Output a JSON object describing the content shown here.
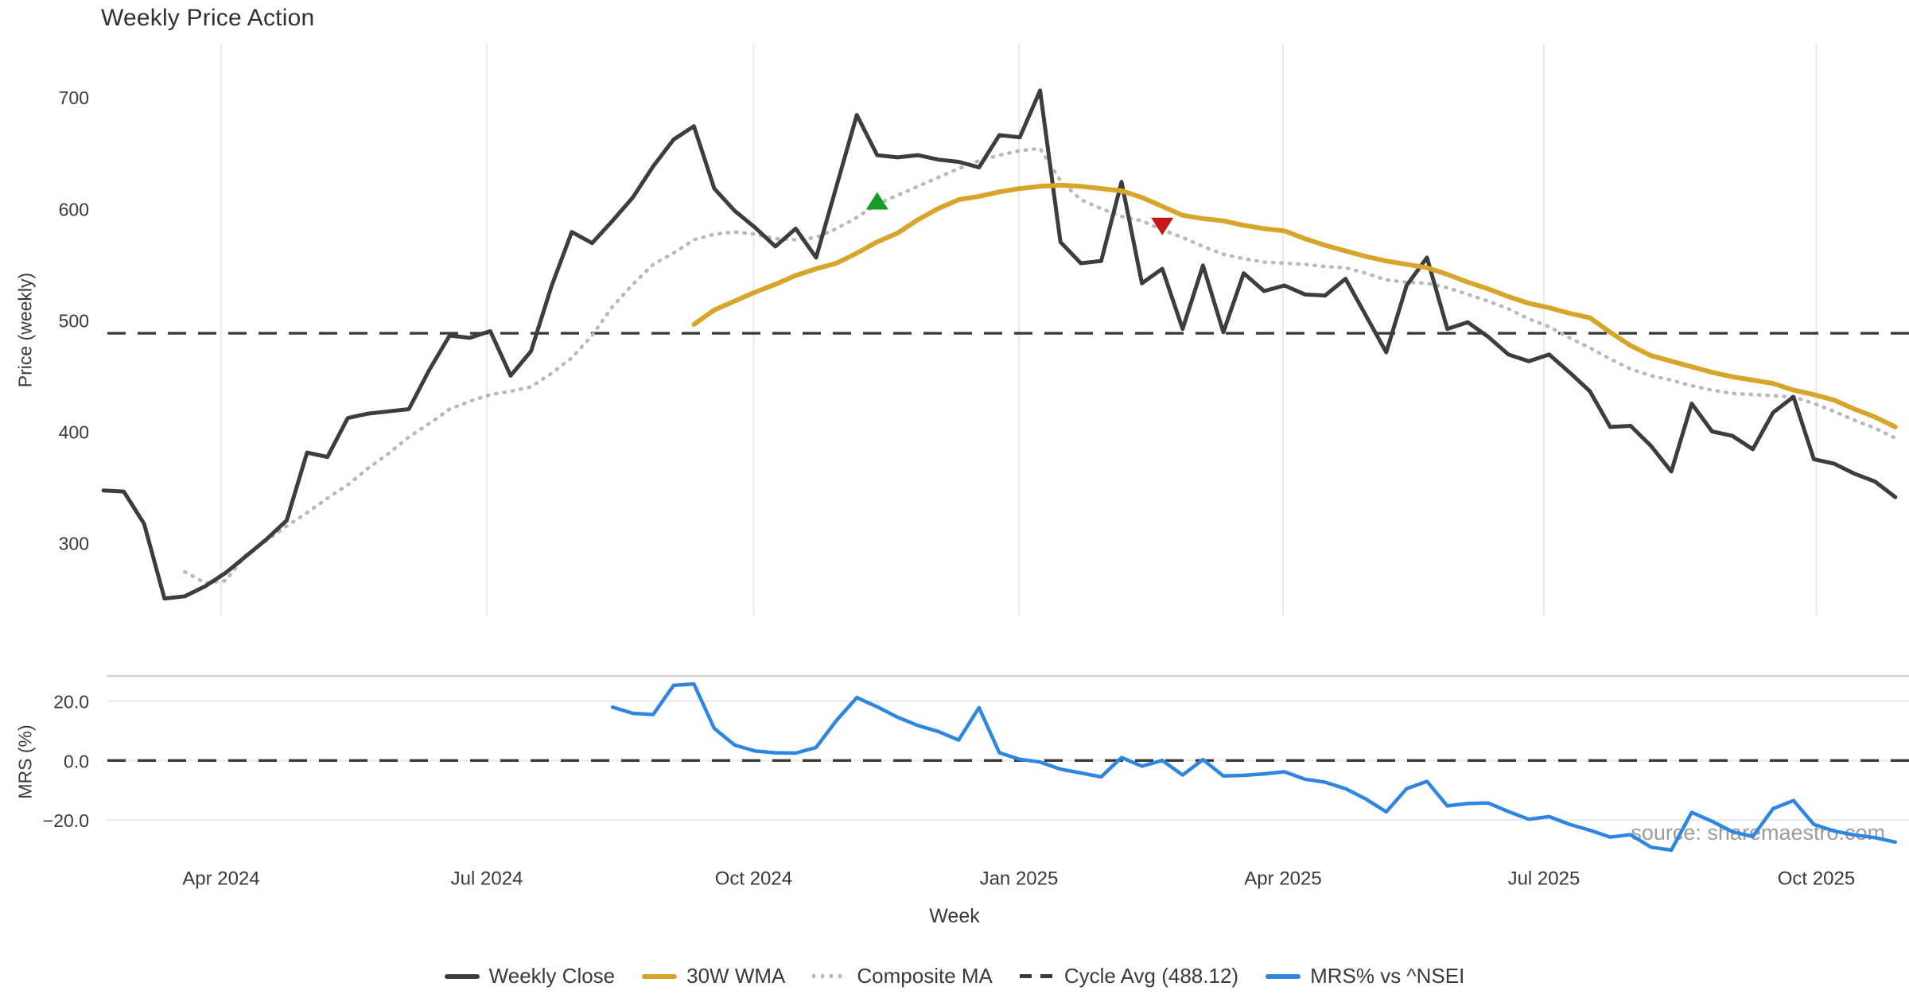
{
  "title": "Weekly Price Action",
  "source_watermark": "source: sharemaestro.com",
  "colors": {
    "close": "#3d3d3d",
    "wma": "#d7a52a",
    "composite": "#b9b9b9",
    "cycle": "#3a3a3a",
    "mrs": "#2f86e0",
    "gridline": "#e9e9f1",
    "panel_spine": "#d4d4d8",
    "marker_up": "#169c23",
    "marker_down": "#c51619"
  },
  "legend": {
    "items": [
      {
        "label": "Weekly Close",
        "style": "solid",
        "color": "#3d3d3d"
      },
      {
        "label": "30W WMA",
        "style": "solid",
        "color": "#d7a52a"
      },
      {
        "label": "Composite MA",
        "style": "dotted",
        "color": "#b9b9b9"
      },
      {
        "label": "Cycle Avg (488.12)",
        "style": "dashed",
        "color": "#3a3a3a"
      },
      {
        "label": "MRS% vs ^NSEI",
        "style": "solid",
        "color": "#2f86e0"
      }
    ]
  },
  "chart_data": {
    "type": "line",
    "title": "Weekly Price Action",
    "x_unit": "week_index",
    "n_points": 89,
    "axes": {
      "x": {
        "label": "Week",
        "tick_indices": [
          5.78,
          18.83,
          31.93,
          44.96,
          57.93,
          70.74,
          84.12
        ],
        "tick_labels": [
          "Apr 2024",
          "Jul 2024",
          "Oct 2024",
          "Jan 2025",
          "Apr 2025",
          "Jul 2025",
          "Oct 2025"
        ]
      },
      "main": {
        "label": "Price (weekly)",
        "ylim": [
          234,
          748
        ],
        "tick_values": [
          700,
          600,
          500,
          400,
          300
        ],
        "tick_labels": [
          "700",
          "600",
          "500",
          "400",
          "300"
        ]
      },
      "lower": {
        "label": "MRS (%)",
        "ylim": [
          -31,
          28.5
        ],
        "tick_values": [
          20,
          0,
          -20
        ],
        "tick_labels": [
          "20.0",
          "0.0",
          "−20.0"
        ]
      }
    },
    "reference_lines": [
      {
        "name": "Cycle Avg",
        "panel": "main",
        "value": 488.12
      },
      {
        "name": "Zero",
        "panel": "lower",
        "value": 0
      }
    ],
    "markers": [
      {
        "shape": "triangle-up",
        "color": "#169c23",
        "week_index": 38,
        "value": 607
      },
      {
        "shape": "triangle-down",
        "color": "#c51619",
        "week_index": 52,
        "value": 584
      }
    ],
    "series": [
      {
        "name": "Weekly Close",
        "panel": "main",
        "style": "solid",
        "color": "#3d3d3d",
        "values": [
          347,
          346,
          317,
          250,
          252,
          261,
          273,
          288,
          303,
          320,
          381,
          377,
          412,
          416,
          418,
          420,
          455,
          486,
          484,
          490,
          450,
          472,
          530,
          579,
          569,
          589,
          610,
          638,
          662,
          674,
          618,
          598,
          583,
          566,
          582,
          556,
          620,
          684,
          648,
          646,
          648,
          644,
          642,
          637,
          666,
          664,
          706,
          570,
          551,
          553,
          624,
          533,
          546,
          492,
          549,
          489,
          542,
          526,
          531,
          523,
          522,
          537,
          504,
          471,
          531,
          556,
          492,
          498,
          485,
          469,
          463,
          469,
          453,
          436,
          404,
          405,
          387,
          364,
          425,
          400,
          396,
          384,
          417,
          431,
          375,
          371,
          362,
          355,
          341
        ]
      },
      {
        "name": "30W WMA",
        "panel": "main",
        "style": "solid",
        "color": "#d7a52a",
        "values": [
          null,
          null,
          null,
          null,
          null,
          null,
          null,
          null,
          null,
          null,
          null,
          null,
          null,
          null,
          null,
          null,
          null,
          null,
          null,
          null,
          null,
          null,
          null,
          null,
          null,
          null,
          null,
          null,
          null,
          496,
          509,
          517,
          525,
          532,
          540,
          546,
          551,
          560,
          570,
          578,
          590,
          600,
          608,
          611,
          615,
          618,
          620,
          621,
          620,
          618,
          616,
          610,
          602,
          594,
          591,
          589,
          585,
          582,
          580,
          573,
          567,
          562,
          557,
          553,
          550,
          547,
          541,
          534,
          528,
          521,
          515,
          511,
          506,
          502,
          489,
          477,
          468,
          463,
          458,
          453,
          449,
          446,
          443,
          437,
          433,
          428,
          420,
          413,
          404
        ]
      },
      {
        "name": "Composite MA",
        "panel": "main",
        "style": "dotted",
        "color": "#b9b9b9",
        "values": [
          null,
          null,
          null,
          null,
          274,
          264,
          266,
          289,
          302,
          315,
          327,
          340,
          352,
          367,
          380,
          395,
          407,
          420,
          427,
          433,
          436,
          440,
          452,
          466,
          486,
          512,
          532,
          550,
          560,
          572,
          577,
          579,
          577,
          573,
          572,
          574,
          582,
          592,
          604,
          612,
          620,
          628,
          636,
          643,
          648,
          652,
          654,
          625,
          608,
          600,
          593,
          589,
          581,
          574,
          566,
          559,
          555,
          552,
          551,
          550,
          548,
          547,
          542,
          536,
          534,
          533,
          529,
          523,
          517,
          510,
          501,
          494,
          484,
          475,
          465,
          456,
          450,
          446,
          441,
          437,
          434,
          433,
          432,
          431,
          425,
          418,
          410,
          403,
          394
        ]
      },
      {
        "name": "MRS% vs ^NSEI",
        "panel": "lower",
        "style": "solid",
        "color": "#2f86e0",
        "values": [
          null,
          null,
          null,
          null,
          null,
          null,
          null,
          null,
          null,
          null,
          null,
          null,
          null,
          null,
          null,
          null,
          null,
          null,
          null,
          null,
          null,
          null,
          null,
          null,
          null,
          18.0,
          15.9,
          15.5,
          25.3,
          25.8,
          10.8,
          5.2,
          3.2,
          2.6,
          2.5,
          4.4,
          13.5,
          21.2,
          18.1,
          14.6,
          11.8,
          9.8,
          6.9,
          17.8,
          2.6,
          0.4,
          -0.5,
          -2.9,
          -4.2,
          -5.5,
          1.0,
          -1.9,
          0.0,
          -4.9,
          0.3,
          -5.2,
          -5.0,
          -4.5,
          -3.8,
          -6.3,
          -7.3,
          -9.5,
          -13.0,
          -17.3,
          -9.5,
          -7.0,
          -15.3,
          -14.5,
          -14.3,
          -17.2,
          -19.8,
          -18.9,
          -21.5,
          -23.5,
          -25.8,
          -25.0,
          -29.2,
          -30.2,
          -17.5,
          -20.5,
          -24.0,
          -25.6,
          -16.2,
          -13.5,
          -21.5,
          -23.8,
          -25.1,
          -26.0,
          -27.5
        ]
      }
    ],
    "legend_position": "bottom-center",
    "grid": "vertical-only-main"
  }
}
